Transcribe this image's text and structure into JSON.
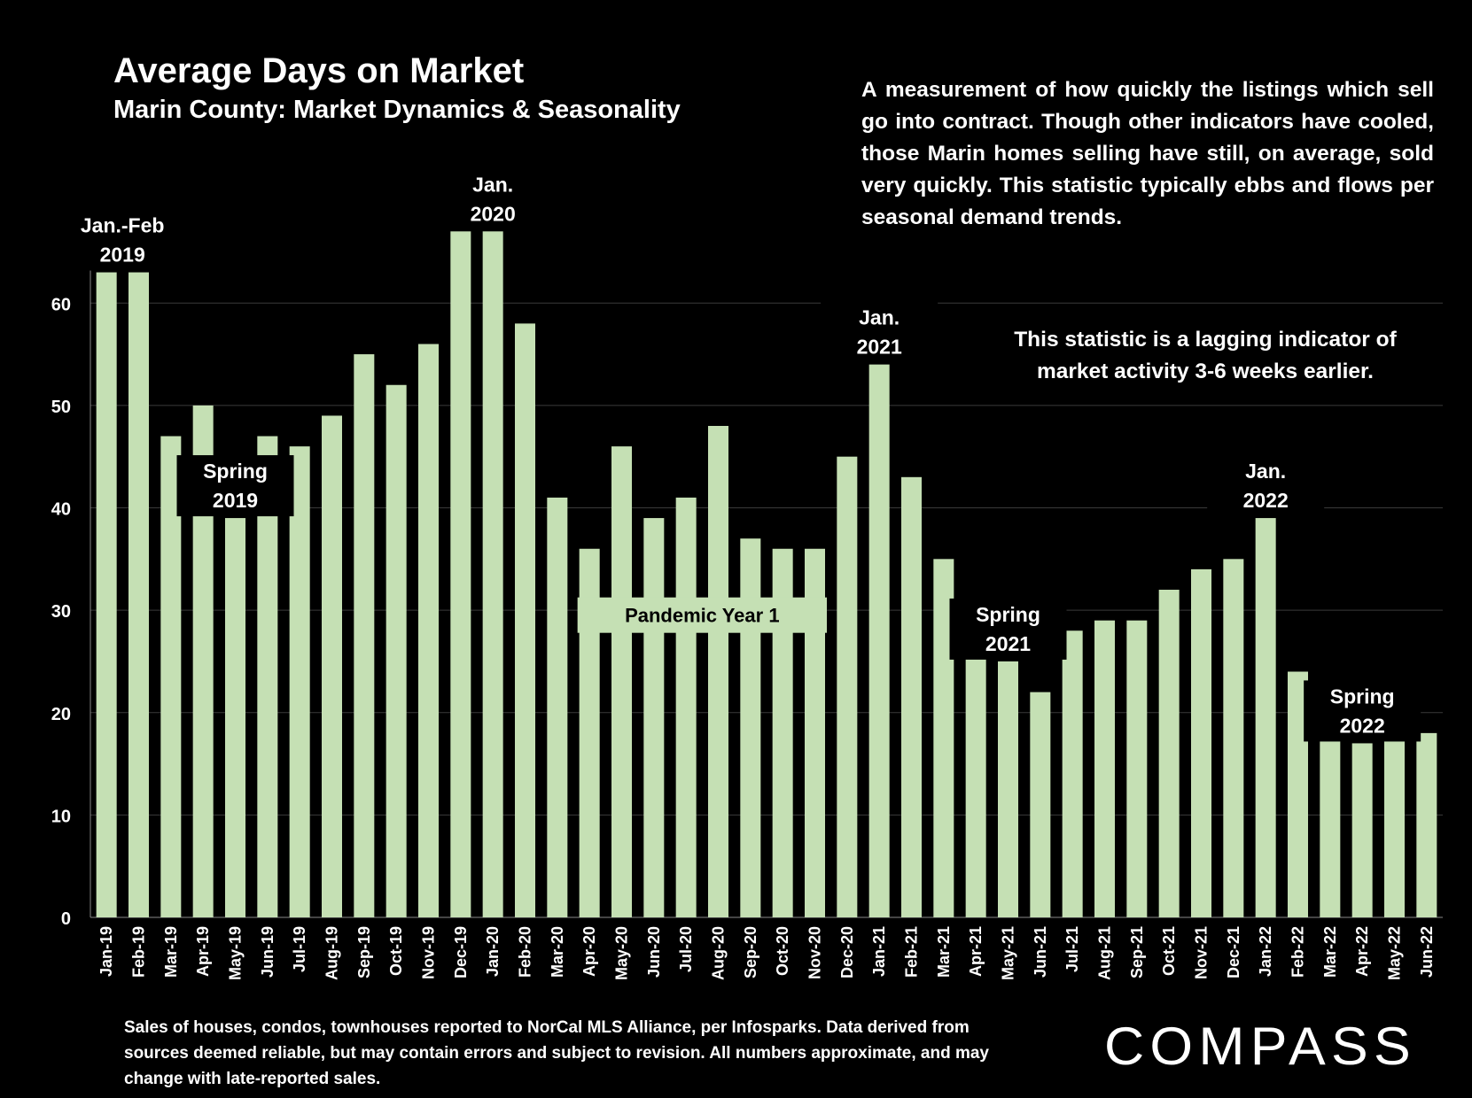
{
  "header": {
    "title": "Average Days on Market",
    "subtitle": "Marin County: Market Dynamics & Seasonality"
  },
  "description": "A measurement of how quickly the listings which sell go into contract. Though other indicators have cooled, those Marin homes selling have still, on average, sold very quickly. This statistic typically ebbs and flows per seasonal demand trends.",
  "lagging_note": "This statistic is a lagging indicator of market activity 3-6 weeks earlier.",
  "footnote": "Sales of houses, condos, townhouses reported to NorCal MLS Alliance, per Infosparks. Data derived from sources deemed reliable, but may contain errors and subject to revision. All numbers approximate, and may change with late-reported sales.",
  "logo": {
    "text": "COMPASS"
  },
  "colors": {
    "background": "#000000",
    "bar": "#c5e0b4",
    "text": "#ffffff",
    "grid": "#3a3a3a"
  },
  "chart_data": {
    "type": "bar",
    "title": "Average Days on Market",
    "subtitle": "Marin County: Market Dynamics & Seasonality",
    "xlabel": "",
    "ylabel": "",
    "ylim": [
      0,
      64
    ],
    "yticks": [
      0,
      10,
      20,
      30,
      40,
      50,
      60
    ],
    "grid": true,
    "categories": [
      "Jan-19",
      "Feb-19",
      "Mar-19",
      "Apr-19",
      "May-19",
      "Jun-19",
      "Jul-19",
      "Aug-19",
      "Sep-19",
      "Oct-19",
      "Nov-19",
      "Dec-19",
      "Jan-20",
      "Feb-20",
      "Mar-20",
      "Apr-20",
      "May-20",
      "Jun-20",
      "Jul-20",
      "Aug-20",
      "Sep-20",
      "Oct-20",
      "Nov-20",
      "Dec-20",
      "Jan-21",
      "Feb-21",
      "Mar-21",
      "Apr-21",
      "May-21",
      "Jun-21",
      "Jul-21",
      "Aug-21",
      "Sep-21",
      "Oct-21",
      "Nov-21",
      "Dec-21",
      "Jan-22",
      "Feb-22",
      "Mar-22",
      "Apr-22",
      "May-22",
      "Jun-22"
    ],
    "values": [
      63,
      63,
      47,
      50,
      39,
      47,
      46,
      49,
      55,
      52,
      56,
      67,
      67,
      58,
      41,
      36,
      46,
      39,
      41,
      48,
      37,
      36,
      36,
      45,
      54,
      43,
      35,
      30,
      25,
      22,
      28,
      29,
      29,
      32,
      34,
      35,
      39,
      24,
      18,
      17,
      18,
      18
    ],
    "annotations": [
      {
        "category": "Jan-19",
        "lines": [
          "Jan.-Feb",
          "2019"
        ]
      },
      {
        "category": "May-19",
        "lines": [
          "Spring",
          "2019"
        ]
      },
      {
        "category": "Jan-20",
        "lines": [
          "Jan.",
          "2020"
        ]
      },
      {
        "category": "Jan-21",
        "lines": [
          "Jan.",
          "2021"
        ]
      },
      {
        "category": "May-21",
        "lines": [
          "Spring",
          "2021"
        ]
      },
      {
        "category": "Jan-22",
        "lines": [
          "Jan.",
          "2022"
        ]
      },
      {
        "category": "Apr-22",
        "lines": [
          "Spring",
          "2022"
        ]
      }
    ],
    "band_label": {
      "text": "Pandemic Year 1",
      "from": "Apr-20",
      "to": "Nov-20",
      "y": 29
    }
  }
}
